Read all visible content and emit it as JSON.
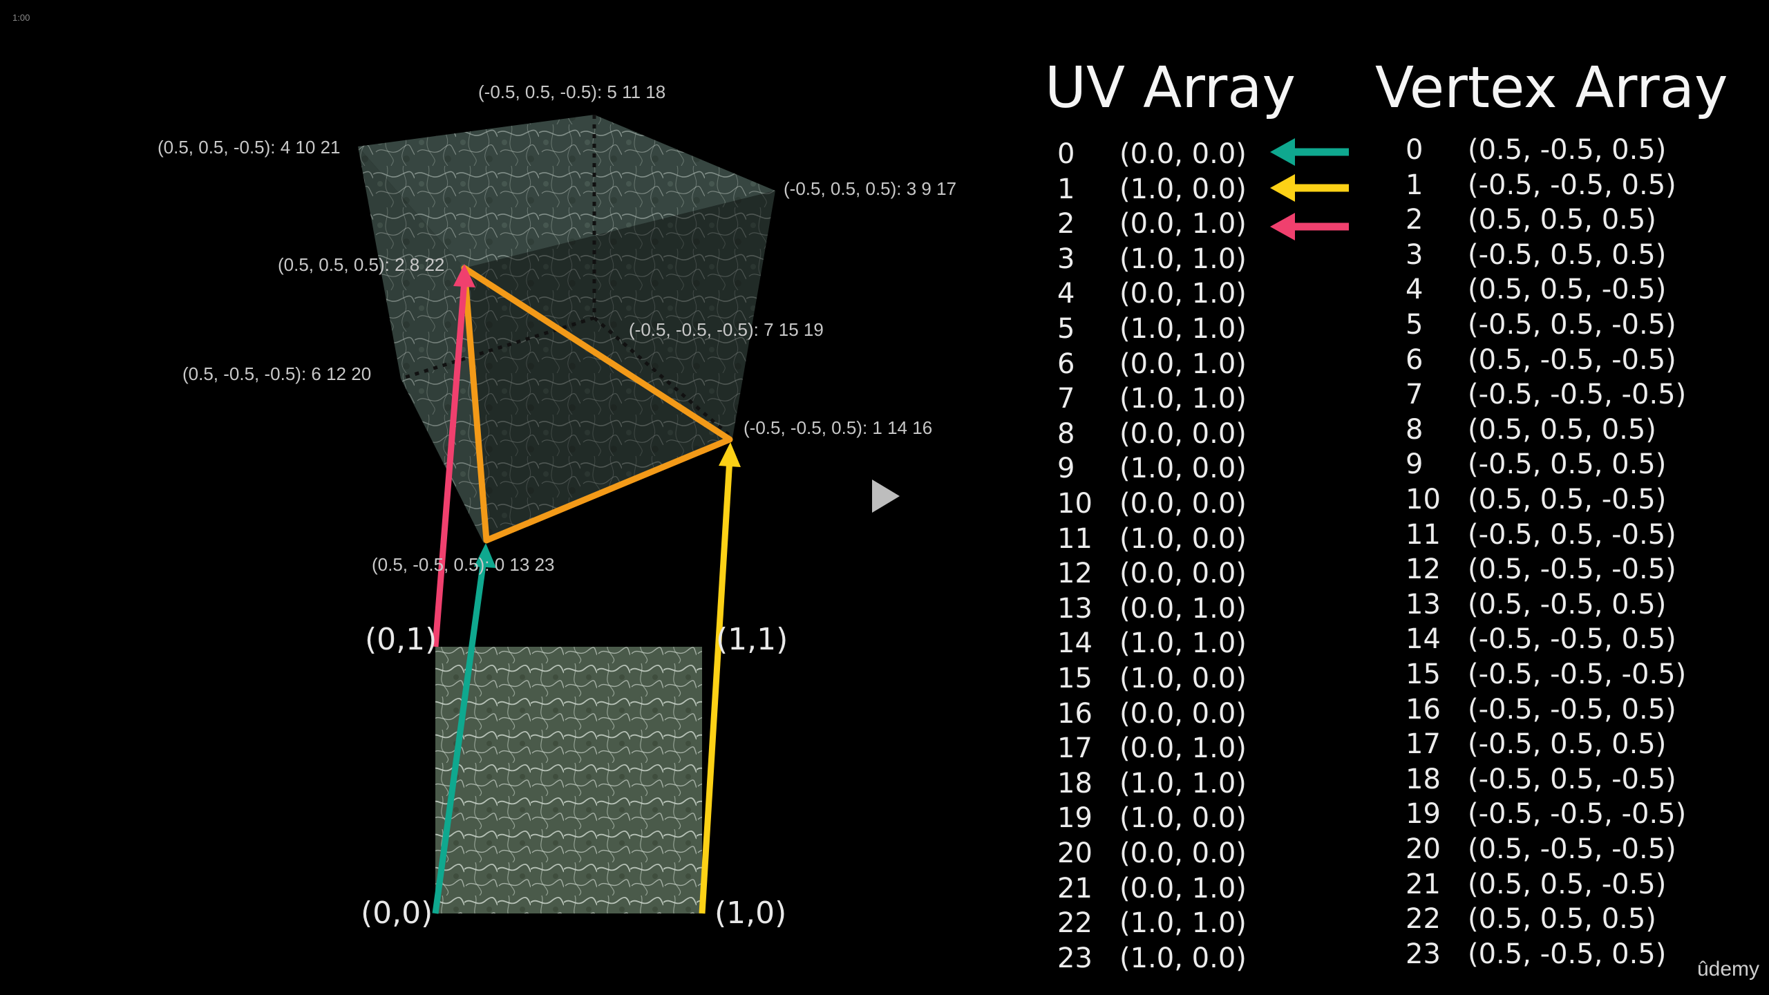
{
  "timestamp": "1:00",
  "uv_heading": "UV Array",
  "vertex_heading": "Vertex Array",
  "uv_array": [
    [
      "0",
      "(0.0, 0.0)"
    ],
    [
      "1",
      "(1.0, 0.0)"
    ],
    [
      "2",
      "(0.0, 1.0)"
    ],
    [
      "3",
      "(1.0, 1.0)"
    ],
    [
      "4",
      "(0.0, 1.0)"
    ],
    [
      "5",
      "(1.0, 1.0)"
    ],
    [
      "6",
      "(0.0, 1.0)"
    ],
    [
      "7",
      "(1.0, 1.0)"
    ],
    [
      "8",
      "(0.0, 0.0)"
    ],
    [
      "9",
      "(1.0, 0.0)"
    ],
    [
      "10",
      "(0.0, 0.0)"
    ],
    [
      "11",
      "(1.0, 0.0)"
    ],
    [
      "12",
      "(0.0, 0.0)"
    ],
    [
      "13",
      "(0.0, 1.0)"
    ],
    [
      "14",
      "(1.0, 1.0)"
    ],
    [
      "15",
      "(1.0, 0.0)"
    ],
    [
      "16",
      "(0.0, 0.0)"
    ],
    [
      "17",
      "(0.0, 1.0)"
    ],
    [
      "18",
      "(1.0, 1.0)"
    ],
    [
      "19",
      "(1.0, 0.0)"
    ],
    [
      "20",
      "(0.0, 0.0)"
    ],
    [
      "21",
      "(0.0, 1.0)"
    ],
    [
      "22",
      "(1.0, 1.0)"
    ],
    [
      "23",
      "(1.0, 0.0)"
    ]
  ],
  "vertex_array": [
    [
      "0",
      "(0.5, -0.5, 0.5)"
    ],
    [
      "1",
      "(-0.5, -0.5, 0.5)"
    ],
    [
      "2",
      "(0.5, 0.5, 0.5)"
    ],
    [
      "3",
      "(-0.5, 0.5, 0.5)"
    ],
    [
      "4",
      "(0.5, 0.5, -0.5)"
    ],
    [
      "5",
      "(-0.5, 0.5, -0.5)"
    ],
    [
      "6",
      "(0.5, -0.5, -0.5)"
    ],
    [
      "7",
      "(-0.5, -0.5, -0.5)"
    ],
    [
      "8",
      "(0.5, 0.5, 0.5)"
    ],
    [
      "9",
      "(-0.5, 0.5, 0.5)"
    ],
    [
      "10",
      "(0.5, 0.5, -0.5)"
    ],
    [
      "11",
      "(-0.5, 0.5, -0.5)"
    ],
    [
      "12",
      "(0.5, -0.5, -0.5)"
    ],
    [
      "13",
      "(0.5, -0.5, 0.5)"
    ],
    [
      "14",
      "(-0.5, -0.5, 0.5)"
    ],
    [
      "15",
      "(-0.5, -0.5, -0.5)"
    ],
    [
      "16",
      "(-0.5, -0.5, 0.5)"
    ],
    [
      "17",
      "(-0.5, 0.5, 0.5)"
    ],
    [
      "18",
      "(-0.5, 0.5, -0.5)"
    ],
    [
      "19",
      "(-0.5, -0.5, -0.5)"
    ],
    [
      "20",
      "(0.5, -0.5, -0.5)"
    ],
    [
      "21",
      "(0.5, 0.5, -0.5)"
    ],
    [
      "22",
      "(0.5, 0.5, 0.5)"
    ],
    [
      "23",
      "(0.5, -0.5, 0.5)"
    ]
  ],
  "cube_labels": {
    "top_back": "(-0.5, 0.5, -0.5): 5 11 18",
    "top_left": "(0.5, 0.5, -0.5): 4 10 21",
    "top_right": "(-0.5, 0.5, 0.5): 3 9 17",
    "front_top": "(0.5, 0.5, 0.5): 2 8 22",
    "back_bottom": "(-0.5, -0.5, -0.5): 7 15 19",
    "left_bottom": "(0.5, -0.5, -0.5): 6 12 20",
    "right_bottom": "(-0.5, -0.5, 0.5): 1 14 16",
    "front_bottom": "(0.5, -0.5, 0.5): 0 13 23"
  },
  "uv_corners": {
    "top_left": "(0,1)",
    "top_right": "(1,1)",
    "bottom_left": "(0,0)",
    "bottom_right": "(1,0)"
  },
  "arrow_colors": {
    "teal": "#0fa88f",
    "yellow": "#fcd116",
    "pink": "#f0406e",
    "orange": "#f39a18"
  },
  "brand": "ûdemy"
}
